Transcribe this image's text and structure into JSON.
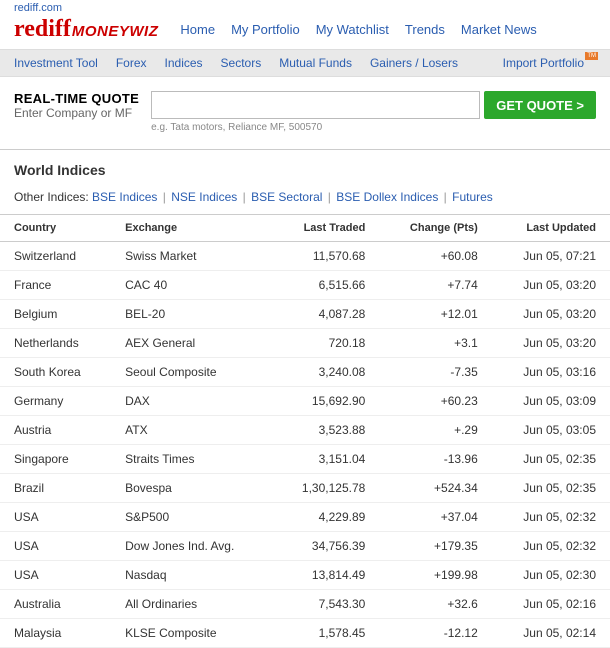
{
  "top_link": "rediff.com",
  "logo": {
    "main": "rediff",
    "sub": "MONEYWIZ"
  },
  "topnav": [
    "Home",
    "My Portfolio",
    "My Watchlist",
    "Trends",
    "Market News"
  ],
  "subnav": [
    "Investment Tool",
    "Forex",
    "Indices",
    "Sectors",
    "Mutual Funds",
    "Gainers / Losers"
  ],
  "subnav_import": "Import Portfolio",
  "quote": {
    "title": "REAL-TIME QUOTE",
    "subtitle": "Enter Company or MF",
    "button": "GET QUOTE >",
    "example": "e.g. Tata motors, Reliance MF, 500570"
  },
  "page_title": "World Indices",
  "other_indices": {
    "label": "Other Indices:",
    "items": [
      "BSE Indices",
      "NSE Indices",
      "BSE Sectoral",
      "BSE Dollex Indices",
      "Futures"
    ]
  },
  "table": {
    "headers": [
      "Country",
      "Exchange",
      "Last Traded",
      "Change (Pts)",
      "Last Updated"
    ],
    "rows": [
      {
        "country": "Switzerland",
        "exchange": "Swiss Market",
        "last": "11,570.68",
        "change": "+60.08",
        "neg": false,
        "updated": "Jun 05, 07:21"
      },
      {
        "country": "France",
        "exchange": "CAC 40",
        "last": "6,515.66",
        "change": "+7.74",
        "neg": false,
        "updated": "Jun 05, 03:20"
      },
      {
        "country": "Belgium",
        "exchange": "BEL-20",
        "last": "4,087.28",
        "change": "+12.01",
        "neg": false,
        "updated": "Jun 05, 03:20"
      },
      {
        "country": "Netherlands",
        "exchange": "AEX General",
        "last": "720.18",
        "change": "+3.1",
        "neg": false,
        "updated": "Jun 05, 03:20"
      },
      {
        "country": "South Korea",
        "exchange": "Seoul Composite",
        "last": "3,240.08",
        "change": "-7.35",
        "neg": true,
        "updated": "Jun 05, 03:16"
      },
      {
        "country": "Germany",
        "exchange": "DAX",
        "last": "15,692.90",
        "change": "+60.23",
        "neg": false,
        "updated": "Jun 05, 03:09"
      },
      {
        "country": "Austria",
        "exchange": "ATX",
        "last": "3,523.88",
        "change": "+.29",
        "neg": false,
        "updated": "Jun 05, 03:05"
      },
      {
        "country": "Singapore",
        "exchange": "Straits Times",
        "last": "3,151.04",
        "change": "-13.96",
        "neg": true,
        "updated": "Jun 05, 02:35"
      },
      {
        "country": "Brazil",
        "exchange": "Bovespa",
        "last": "1,30,125.78",
        "change": "+524.34",
        "neg": false,
        "updated": "Jun 05, 02:35"
      },
      {
        "country": "USA",
        "exchange": "S&P500",
        "last": "4,229.89",
        "change": "+37.04",
        "neg": false,
        "updated": "Jun 05, 02:32"
      },
      {
        "country": "USA",
        "exchange": "Dow Jones Ind. Avg.",
        "last": "34,756.39",
        "change": "+179.35",
        "neg": false,
        "updated": "Jun 05, 02:32"
      },
      {
        "country": "USA",
        "exchange": "Nasdaq",
        "last": "13,814.49",
        "change": "+199.98",
        "neg": false,
        "updated": "Jun 05, 02:30"
      },
      {
        "country": "Australia",
        "exchange": "All Ordinaries",
        "last": "7,543.30",
        "change": "+32.6",
        "neg": false,
        "updated": "Jun 05, 02:16"
      },
      {
        "country": "Malaysia",
        "exchange": "KLSE Composite",
        "last": "1,578.45",
        "change": "-12.12",
        "neg": true,
        "updated": "Jun 05, 02:14"
      }
    ]
  }
}
